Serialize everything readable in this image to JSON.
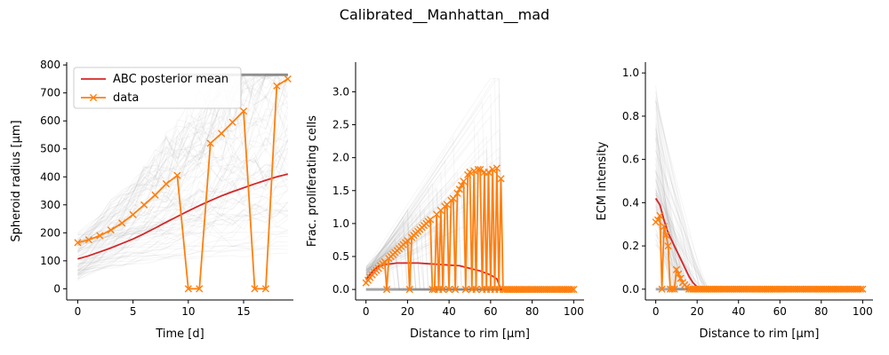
{
  "figure": {
    "title": "Calibrated__Manhattan__mad"
  },
  "chart_data": [
    {
      "type": "line",
      "xlabel": "Time [d]",
      "ylabel": "Spheroid radius [μm]",
      "xlim": [
        -1,
        19.5
      ],
      "ylim": [
        -40,
        810
      ],
      "xticks": [
        0,
        5,
        10,
        15
      ],
      "yticks": [
        0,
        100,
        200,
        300,
        400,
        500,
        600,
        700,
        800
      ],
      "legend": {
        "placement": "top-left",
        "entries": [
          "ABC posterior mean",
          "data"
        ]
      },
      "series": [
        {
          "name": "ABC posterior mean",
          "color": "#d62728",
          "marker": "none",
          "x": [
            0,
            1,
            2,
            3,
            4,
            5,
            6,
            7,
            8,
            9,
            10,
            11,
            12,
            13,
            14,
            15,
            16,
            17,
            18,
            19
          ],
          "y": [
            107,
            118,
            132,
            146,
            162,
            178,
            197,
            217,
            238,
            258,
            278,
            297,
            315,
            332,
            347,
            361,
            375,
            388,
            400,
            410
          ]
        },
        {
          "name": "data",
          "color": "#ff7f0e",
          "marker": "x",
          "x": [
            0,
            1,
            2,
            3,
            4,
            5,
            6,
            7,
            8,
            9,
            10,
            11,
            12,
            13,
            14,
            15,
            16,
            17,
            18,
            19
          ],
          "y": [
            165,
            175,
            190,
            210,
            235,
            265,
            300,
            335,
            375,
            405,
            0,
            0,
            520,
            555,
            595,
            635,
            0,
            0,
            725,
            750
          ]
        }
      ]
    },
    {
      "type": "line",
      "xlabel": "Distance to rim [μm]",
      "ylabel": "Frac. proliferating cells",
      "xlim": [
        -5,
        105
      ],
      "ylim": [
        -0.16,
        3.45
      ],
      "xticks": [
        0,
        20,
        40,
        60,
        80,
        100
      ],
      "yticks": [
        0.0,
        0.5,
        1.0,
        1.5,
        2.0,
        2.5,
        3.0
      ],
      "series": [
        {
          "name": "ABC posterior mean",
          "color": "#d62728",
          "marker": "none",
          "x": [
            0,
            2,
            4,
            6,
            8,
            10,
            15,
            20,
            25,
            30,
            35,
            40,
            45,
            50,
            55,
            60,
            63,
            65,
            100
          ],
          "y": [
            0.15,
            0.23,
            0.3,
            0.35,
            0.37,
            0.38,
            0.4,
            0.4,
            0.4,
            0.39,
            0.38,
            0.37,
            0.36,
            0.32,
            0.28,
            0.22,
            0.16,
            0.0,
            0.0
          ]
        },
        {
          "name": "data",
          "color": "#ff7f0e",
          "marker": "x",
          "x": [
            0,
            1,
            2,
            3,
            4,
            5,
            6,
            7,
            8,
            9,
            10,
            11,
            12,
            13,
            14,
            15,
            16,
            17,
            18,
            19,
            20,
            21,
            22,
            23,
            24,
            25,
            26,
            27,
            28,
            29,
            30,
            31,
            32,
            33,
            34,
            35,
            36,
            37,
            38,
            39,
            40,
            41,
            42,
            43,
            44,
            45,
            46,
            47,
            48,
            49,
            50,
            51,
            52,
            53,
            54,
            55,
            56,
            57,
            58,
            59,
            60,
            61,
            62,
            63,
            64,
            65,
            66,
            67,
            68,
            69,
            70,
            71,
            72,
            73,
            74,
            75,
            76,
            77,
            78,
            79,
            80,
            81,
            82,
            83,
            84,
            85,
            86,
            87,
            88,
            89,
            90,
            91,
            92,
            93,
            94,
            95,
            96,
            97,
            98,
            99,
            100
          ],
          "y": [
            0.1,
            0.14,
            0.18,
            0.22,
            0.26,
            0.29,
            0.32,
            0.36,
            0.39,
            0.42,
            0.0,
            0.47,
            0.5,
            0.53,
            0.56,
            0.59,
            0.62,
            0.65,
            0.68,
            0.71,
            0.74,
            0.0,
            0.79,
            0.82,
            0.85,
            0.88,
            0.91,
            0.94,
            0.97,
            1.0,
            1.03,
            1.06,
            0.0,
            0.0,
            1.14,
            0.0,
            1.2,
            0.0,
            1.26,
            1.29,
            0.0,
            1.35,
            1.38,
            0.0,
            1.46,
            1.52,
            1.58,
            1.64,
            0.0,
            1.74,
            1.78,
            0.0,
            1.8,
            0.0,
            1.82,
            1.82,
            0.0,
            1.78,
            0.0,
            1.78,
            0.0,
            1.82,
            0.0,
            1.84,
            0.0,
            1.68,
            0.0,
            0.0,
            0.0,
            0.0,
            0.0,
            0.0,
            0.0,
            0.0,
            0.0,
            0.0,
            0.0,
            0.0,
            0.0,
            0.0,
            0.0,
            0.0,
            0.0,
            0.0,
            0.0,
            0.0,
            0.0,
            0.0,
            0.0,
            0.0,
            0.0,
            0.0,
            0.0,
            0.0,
            0.0,
            0.0,
            0.0,
            0.0,
            0.0,
            0.0,
            0.0
          ]
        }
      ]
    },
    {
      "type": "line",
      "xlabel": "Distance to rim [μm]",
      "ylabel": "ECM intensity",
      "xlim": [
        -5,
        105
      ],
      "ylim": [
        -0.05,
        1.05
      ],
      "xticks": [
        0,
        20,
        40,
        60,
        80,
        100
      ],
      "yticks": [
        0.0,
        0.2,
        0.4,
        0.6,
        0.8,
        1.0
      ],
      "series": [
        {
          "name": "ABC posterior mean",
          "color": "#d62728",
          "marker": "none",
          "x": [
            0,
            2,
            4,
            6,
            8,
            10,
            12,
            14,
            16,
            18,
            20,
            22,
            24,
            26,
            30,
            100
          ],
          "y": [
            0.42,
            0.39,
            0.32,
            0.26,
            0.22,
            0.18,
            0.14,
            0.1,
            0.06,
            0.03,
            0.01,
            0.0,
            0.0,
            0.0,
            0.0,
            0.0
          ]
        },
        {
          "name": "data",
          "color": "#ff7f0e",
          "marker": "x",
          "x": [
            0,
            1,
            2,
            3,
            4,
            5,
            6,
            7,
            8,
            9,
            10,
            11,
            12,
            13,
            14,
            15,
            16,
            17,
            18,
            19,
            20,
            21,
            22,
            23,
            24,
            25,
            26,
            27,
            28,
            29,
            30,
            31,
            32,
            33,
            34,
            35,
            36,
            37,
            38,
            39,
            40,
            41,
            42,
            43,
            44,
            45,
            46,
            47,
            48,
            49,
            50,
            51,
            52,
            53,
            54,
            55,
            56,
            57,
            58,
            59,
            60,
            61,
            62,
            63,
            64,
            65,
            66,
            67,
            68,
            69,
            70,
            71,
            72,
            73,
            74,
            75,
            76,
            77,
            78,
            79,
            80,
            81,
            82,
            83,
            84,
            85,
            86,
            87,
            88,
            89,
            90,
            91,
            92,
            93,
            94,
            95,
            96,
            97,
            98,
            99,
            100
          ],
          "y": [
            0.31,
            0.32,
            0.34,
            0.0,
            0.29,
            0.25,
            0.2,
            0.0,
            0.0,
            0.0,
            0.09,
            0.07,
            0.05,
            0.03,
            0.02,
            0.01,
            0.0,
            0.0,
            0.0,
            0.0,
            0.0,
            0.0,
            0.0,
            0.0,
            0.0,
            0.0,
            0.0,
            0.0,
            0.0,
            0.0,
            0.0,
            0.0,
            0.0,
            0.0,
            0.0,
            0.0,
            0.0,
            0.0,
            0.0,
            0.0,
            0.0,
            0.0,
            0.0,
            0.0,
            0.0,
            0.0,
            0.0,
            0.0,
            0.0,
            0.0,
            0.0,
            0.0,
            0.0,
            0.0,
            0.0,
            0.0,
            0.0,
            0.0,
            0.0,
            0.0,
            0.0,
            0.0,
            0.0,
            0.0,
            0.0,
            0.0,
            0.0,
            0.0,
            0.0,
            0.0,
            0.0,
            0.0,
            0.0,
            0.0,
            0.0,
            0.0,
            0.0,
            0.0,
            0.0,
            0.0,
            0.0,
            0.0,
            0.0,
            0.0,
            0.0,
            0.0,
            0.0,
            0.0,
            0.0,
            0.0,
            0.0,
            0.0,
            0.0,
            0.0,
            0.0,
            0.0,
            0.0,
            0.0,
            0.0,
            0.0,
            0.0
          ]
        }
      ]
    }
  ]
}
